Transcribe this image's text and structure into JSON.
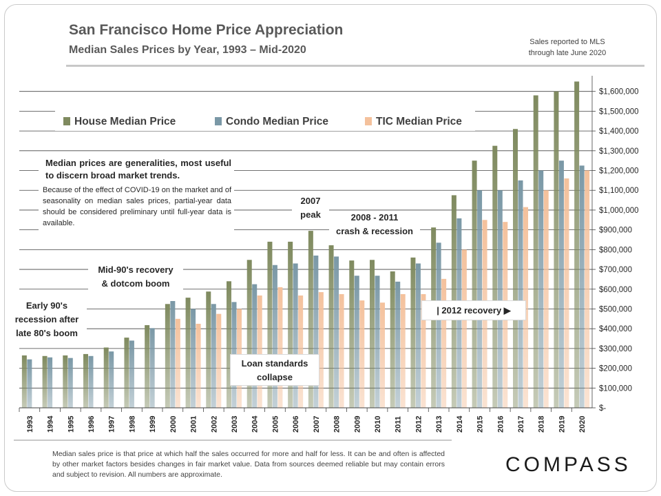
{
  "header": {
    "title": "San Francisco Home Price Appreciation",
    "subtitle": "Median Sales Prices by Year, 1993 – Mid-2020",
    "sales_note_line1": "Sales reported to MLS",
    "sales_note_line2": "through late June 2020"
  },
  "annotations": {
    "early90s_l1": "Early 90's",
    "early90s_l2": "recession after",
    "early90s_l3": "late 80's boom",
    "mid90s_l1": "Mid-90's recovery",
    "mid90s_l2": "& dotcom boom",
    "peak_l1": "2007",
    "peak_l2": "peak",
    "crash_l1": "2008 - 2011",
    "crash_l2": "crash & recession",
    "loan_l1": "Loan standards",
    "loan_l2": "collapse",
    "recovery": "| 2012 recovery ▶",
    "note_main": "Median prices are generalities, most useful to discern broad market trends.",
    "note_sub": "Because of the effect of COVID-19 on the market and of seasonality on median sales prices, partial-year data should be considered preliminary until full-year data is available."
  },
  "footer": {
    "text": "Median sales price is that price at which half the sales occurred for more and half for less. It can be and often is affected by other market factors besides changes in fair market value. Data from sources deemed reliable but may contain errors and subject to revision.  All numbers are approximate."
  },
  "logo": {
    "text": "COMPASS"
  },
  "colors": {
    "house": "#7f8a5f",
    "condo": "#7a98a6",
    "tic": "#f4c19c",
    "grid": "#404040"
  },
  "chart_data": {
    "type": "bar",
    "title": "",
    "xlabel": "",
    "ylabel": "",
    "ylim": [
      0,
      1700000
    ],
    "y_ticks": [
      0,
      100000,
      200000,
      300000,
      400000,
      500000,
      600000,
      700000,
      800000,
      900000,
      1000000,
      1100000,
      1200000,
      1300000,
      1400000,
      1500000,
      1600000
    ],
    "y_tick_labels": [
      "$-",
      "$100,000",
      "$200,000",
      "$300,000",
      "$400,000",
      "$500,000",
      "$600,000",
      "$700,000",
      "$800,000",
      "$900,000",
      "$1,000,000",
      "$1,100,000",
      "$1,200,000",
      "$1,300,000",
      "$1,400,000",
      "$1,500,000",
      "$1,600,000"
    ],
    "grid": true,
    "legend_position": "top-left",
    "categories": [
      "1993",
      "1994",
      "1995",
      "1996",
      "1997",
      "1998",
      "1999",
      "2000",
      "2001",
      "2002",
      "2003",
      "2004",
      "2005",
      "2006",
      "2007",
      "2008",
      "2009",
      "2010",
      "2011",
      "2012",
      "2013",
      "2014",
      "2015",
      "2016",
      "2017",
      "2018",
      "2019",
      "2020"
    ],
    "series": [
      {
        "name": "House Median Price",
        "values": [
          265000,
          262000,
          265000,
          272000,
          305000,
          355000,
          418000,
          525000,
          557000,
          588000,
          640000,
          748000,
          840000,
          840000,
          895000,
          822000,
          745000,
          748000,
          690000,
          760000,
          912000,
          1075000,
          1250000,
          1325000,
          1410000,
          1580000,
          1600000,
          1650000
        ]
      },
      {
        "name": "Condo Median Price",
        "values": [
          245000,
          255000,
          252000,
          262000,
          285000,
          340000,
          403000,
          540000,
          500000,
          525000,
          535000,
          625000,
          722000,
          730000,
          770000,
          765000,
          668000,
          668000,
          638000,
          730000,
          835000,
          958000,
          1100000,
          1100000,
          1150000,
          1200000,
          1250000,
          1225000
        ]
      },
      {
        "name": "TIC Median Price",
        "values": [
          null,
          null,
          null,
          null,
          null,
          null,
          null,
          450000,
          425000,
          475000,
          500000,
          568000,
          610000,
          568000,
          585000,
          575000,
          543000,
          532000,
          575000,
          575000,
          652000,
          800000,
          950000,
          940000,
          1015000,
          1100000,
          1160000,
          1200000
        ]
      }
    ]
  }
}
